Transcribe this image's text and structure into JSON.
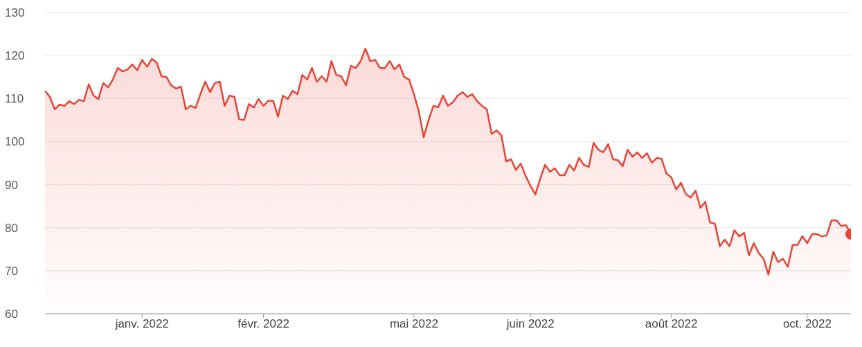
{
  "chart_data": {
    "type": "area",
    "grid": "y",
    "marker": "none",
    "line_style": "solid",
    "categories": [
      null,
      null,
      null,
      null,
      null,
      null,
      null,
      null,
      null,
      null,
      null,
      null,
      null,
      null,
      null,
      null,
      null,
      null,
      null,
      null,
      "janv. 2022",
      null,
      null,
      null,
      null,
      null,
      null,
      null,
      null,
      null,
      null,
      null,
      null,
      null,
      null,
      null,
      null,
      null,
      null,
      null,
      null,
      null,
      null,
      null,
      null,
      "févr. 2022",
      null,
      null,
      null,
      null,
      null,
      null,
      null,
      null,
      null,
      null,
      null,
      null,
      null,
      null,
      null,
      null,
      null,
      null,
      null,
      null,
      null,
      null,
      null,
      null,
      null,
      null,
      null,
      null,
      null,
      null,
      "mai 2022",
      null,
      null,
      null,
      null,
      null,
      null,
      null,
      null,
      null,
      null,
      null,
      null,
      null,
      null,
      null,
      null,
      null,
      null,
      null,
      null,
      null,
      null,
      null,
      "juin 2022",
      null,
      null,
      null,
      null,
      null,
      null,
      null,
      null,
      null,
      null,
      null,
      null,
      null,
      null,
      null,
      null,
      null,
      null,
      null,
      null,
      null,
      null,
      null,
      null,
      null,
      null,
      null,
      null,
      "août 2022",
      null,
      null,
      null,
      null,
      null,
      null,
      null,
      null,
      null,
      null,
      null,
      null,
      null,
      null,
      null,
      null,
      null,
      null,
      null,
      null,
      null,
      null,
      null,
      null,
      null,
      null,
      null,
      "oct. 2022",
      null,
      null,
      null,
      null,
      null,
      null,
      null,
      null,
      null
    ],
    "ylim": [
      60,
      130
    ],
    "yticks": [
      60,
      70,
      80,
      90,
      100,
      110,
      120,
      130
    ],
    "series": [
      {
        "color": "#ea4335",
        "values": [
          111.8,
          110.4,
          107.5,
          108.6,
          108.3,
          109.4,
          108.7,
          109.7,
          109.4,
          113.3,
          110.7,
          109.9,
          113.6,
          112.6,
          114.5,
          117.1,
          116.3,
          116.8,
          117.9,
          116.6,
          119.0,
          117.4,
          119.2,
          118.4,
          115.2,
          115.0,
          113.1,
          112.3,
          112.8,
          107.5,
          108.3,
          107.8,
          111.0,
          113.9,
          111.5,
          113.6,
          113.9,
          108.3,
          110.7,
          110.4,
          105.2,
          105.0,
          108.7,
          107.9,
          109.9,
          108.3,
          109.5,
          109.5,
          105.8,
          110.7,
          109.9,
          111.8,
          111.0,
          115.5,
          114.4,
          117.1,
          113.9,
          115.2,
          113.9,
          118.7,
          115.5,
          115.2,
          113.1,
          117.6,
          117.1,
          118.7,
          121.6,
          118.7,
          119.0,
          117.1,
          117.1,
          118.7,
          116.8,
          117.9,
          115.0,
          114.4,
          111.0,
          107.0,
          101.0,
          105.0,
          108.3,
          108.0,
          110.7,
          108.3,
          109.1,
          110.7,
          111.5,
          110.4,
          111.0,
          109.4,
          108.3,
          107.5,
          101.8,
          102.6,
          101.5,
          95.4,
          95.9,
          93.4,
          94.9,
          92.0,
          89.7,
          87.7,
          91.4,
          94.6,
          93.0,
          93.8,
          92.2,
          92.2,
          94.6,
          93.3,
          96.2,
          94.6,
          94.1,
          99.7,
          98.1,
          97.5,
          99.4,
          95.9,
          95.7,
          94.3,
          98.1,
          96.5,
          97.5,
          96.2,
          97.3,
          95.1,
          96.2,
          96.0,
          92.6,
          91.7,
          88.9,
          90.4,
          87.8,
          87.0,
          88.6,
          84.6,
          86.0,
          81.2,
          80.9,
          75.7,
          77.2,
          75.7,
          79.4,
          78.0,
          78.8,
          73.6,
          76.4,
          74.1,
          72.8,
          69.1,
          74.4,
          72.0,
          72.8,
          70.9,
          76.0,
          76.0,
          78.0,
          76.4,
          78.5,
          78.5,
          78.0,
          78.2,
          81.7,
          81.7,
          80.4,
          80.6,
          78.5
        ]
      },
      {
        "type": "scatter",
        "marker": "circle",
        "color": "#ea4335",
        "values": [
          null,
          null,
          null,
          null,
          null,
          null,
          null,
          null,
          null,
          null,
          null,
          null,
          null,
          null,
          null,
          null,
          null,
          null,
          null,
          null,
          null,
          null,
          null,
          null,
          null,
          null,
          null,
          null,
          null,
          null,
          null,
          null,
          null,
          null,
          null,
          null,
          null,
          null,
          null,
          null,
          null,
          null,
          null,
          null,
          null,
          null,
          null,
          null,
          null,
          null,
          null,
          null,
          null,
          null,
          null,
          null,
          null,
          null,
          null,
          null,
          null,
          null,
          null,
          null,
          null,
          null,
          null,
          null,
          null,
          null,
          null,
          null,
          null,
          null,
          null,
          null,
          null,
          null,
          null,
          null,
          null,
          null,
          null,
          null,
          null,
          null,
          null,
          null,
          null,
          null,
          null,
          null,
          null,
          null,
          null,
          null,
          null,
          null,
          null,
          null,
          null,
          null,
          null,
          null,
          null,
          null,
          null,
          null,
          null,
          null,
          null,
          null,
          null,
          null,
          null,
          null,
          null,
          null,
          null,
          null,
          null,
          null,
          null,
          null,
          null,
          null,
          null,
          null,
          null,
          null,
          null,
          null,
          null,
          null,
          null,
          null,
          null,
          null,
          null,
          null,
          null,
          null,
          null,
          null,
          null,
          null,
          null,
          null,
          null,
          null,
          null,
          null,
          null,
          null,
          null,
          null,
          null,
          null,
          null,
          null,
          null,
          null,
          null,
          null,
          null,
          null,
          78.5
        ]
      }
    ]
  }
}
